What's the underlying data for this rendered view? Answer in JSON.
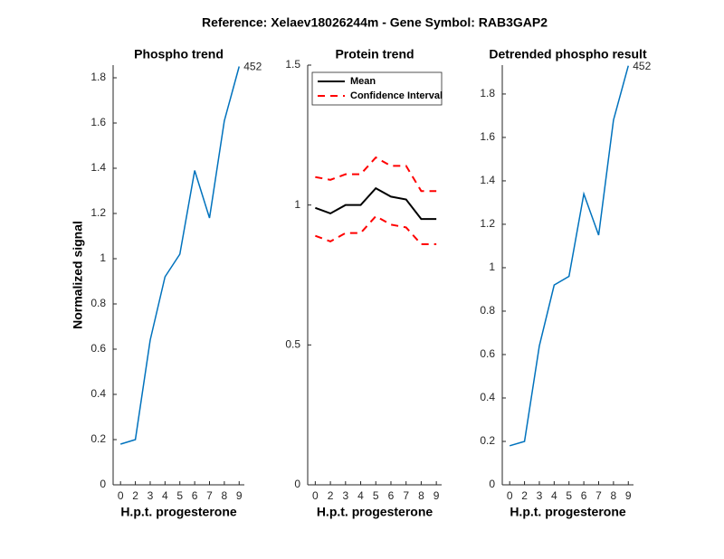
{
  "title": "Reference:  Xelaev18026244m - Gene Symbol:  RAB3GAP2",
  "chart_data": [
    {
      "type": "line",
      "title": "Phospho trend",
      "xlabel": "H.p.t. progesterone",
      "ylabel": "Normalized signal",
      "categories": [
        "0",
        "2",
        "3",
        "4",
        "5",
        "6",
        "7",
        "8",
        "9"
      ],
      "series": [
        {
          "color": "#0072bd",
          "values": [
            0.18,
            0.2,
            0.64,
            0.92,
            1.02,
            1.39,
            1.18,
            1.61,
            1.85
          ]
        }
      ],
      "annotation": "452",
      "ylim": [
        0,
        1.856
      ],
      "yticks": [
        0,
        0.2,
        0.4,
        0.6,
        0.8,
        1,
        1.2,
        1.4,
        1.6,
        1.8
      ]
    },
    {
      "type": "line",
      "title": "Protein trend",
      "xlabel": "H.p.t. progesterone",
      "categories": [
        "0",
        "2",
        "3",
        "4",
        "5",
        "6",
        "7",
        "8",
        "9"
      ],
      "series": [
        {
          "name": "Mean",
          "color": "#000000",
          "values": [
            0.99,
            0.97,
            1.0,
            1.0,
            1.06,
            1.03,
            1.02,
            0.95,
            0.95
          ]
        },
        {
          "name": "Confidence Interval",
          "color": "#ff0000",
          "dashed": true,
          "values": [
            1.1,
            1.09,
            1.11,
            1.11,
            1.17,
            1.14,
            1.14,
            1.05,
            1.05
          ],
          "lower": [
            0.89,
            0.87,
            0.9,
            0.9,
            0.96,
            0.93,
            0.92,
            0.86,
            0.86
          ]
        }
      ],
      "legend": "upper left",
      "ylim": [
        0,
        1.5
      ],
      "yticks": [
        0,
        0.5,
        1,
        1.5
      ]
    },
    {
      "type": "line",
      "title": "Detrended phospho result",
      "xlabel": "H.p.t. progesterone",
      "categories": [
        "0",
        "2",
        "3",
        "4",
        "5",
        "6",
        "7",
        "8",
        "9"
      ],
      "series": [
        {
          "color": "#0072bd",
          "values": [
            0.18,
            0.2,
            0.64,
            0.92,
            0.96,
            1.34,
            1.15,
            1.68,
            1.93
          ]
        }
      ],
      "annotation": "452",
      "ylim": [
        0,
        1.933
      ],
      "yticks": [
        0,
        0.2,
        0.4,
        0.6,
        0.8,
        1,
        1.2,
        1.4,
        1.6,
        1.8
      ]
    }
  ]
}
